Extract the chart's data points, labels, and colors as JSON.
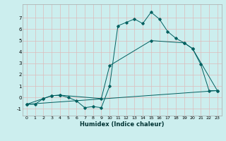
{
  "xlabel": "Humidex (Indice chaleur)",
  "bg_color": "#cceeee",
  "grid_color": "#ddbbbb",
  "line_color": "#006060",
  "xlim": [
    -0.5,
    23.5
  ],
  "ylim": [
    -1.6,
    8.2
  ],
  "yticks": [
    -1,
    0,
    1,
    2,
    3,
    4,
    5,
    6,
    7
  ],
  "xticks": [
    0,
    1,
    2,
    3,
    4,
    5,
    6,
    7,
    8,
    9,
    10,
    11,
    12,
    13,
    14,
    15,
    16,
    17,
    18,
    19,
    20,
    21,
    22,
    23
  ],
  "line1_x": [
    0,
    1,
    2,
    3,
    4,
    5,
    6,
    7,
    8,
    9,
    10,
    11,
    12,
    13,
    14,
    15,
    16,
    17,
    18,
    19,
    20,
    21,
    22,
    23
  ],
  "line1_y": [
    -0.6,
    -0.6,
    -0.1,
    0.15,
    0.2,
    0.0,
    -0.3,
    -0.9,
    -0.8,
    -0.9,
    1.0,
    6.3,
    6.6,
    6.9,
    6.5,
    7.5,
    6.9,
    5.8,
    5.2,
    4.8,
    4.3,
    2.9,
    0.6,
    0.6
  ],
  "line2_x": [
    0,
    2,
    3,
    4,
    9,
    10,
    15,
    19,
    20,
    23
  ],
  "line2_y": [
    -0.6,
    -0.1,
    0.15,
    0.2,
    -0.1,
    2.8,
    5.0,
    4.8,
    4.3,
    0.6
  ],
  "line3_x": [
    0,
    23
  ],
  "line3_y": [
    -0.6,
    0.6
  ]
}
